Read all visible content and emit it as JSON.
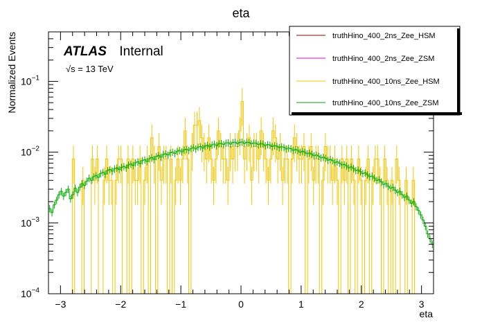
{
  "chart_data": {
    "type": "histogram",
    "title": "eta",
    "xlabel": "eta",
    "ylabel": "Normalized Events",
    "xlim": [
      -3.2,
      3.2
    ],
    "ylim": [
      0.0001,
      0.5
    ],
    "yscale": "log",
    "x_ticks": [
      {
        "value": -3,
        "label": "−3"
      },
      {
        "value": -2,
        "label": "−2"
      },
      {
        "value": -1,
        "label": "−1"
      },
      {
        "value": 0,
        "label": "0"
      },
      {
        "value": 1,
        "label": "1"
      },
      {
        "value": 2,
        "label": "2"
      },
      {
        "value": 3,
        "label": "3"
      }
    ],
    "y_ticks": [
      {
        "value": 0.0001,
        "base": "10",
        "exp": "−4"
      },
      {
        "value": 0.001,
        "base": "10",
        "exp": "−3"
      },
      {
        "value": 0.01,
        "base": "10",
        "exp": "−2"
      },
      {
        "value": 0.1,
        "base": "10",
        "exp": "−1"
      }
    ],
    "atlas_label": "ATLAS",
    "atlas_status": "Internal",
    "energy_label": "√s = 13 TeV",
    "series": [
      {
        "name": "truthHino_400_2ns_Zee_HSM",
        "color": "#8b0000",
        "values": []
      },
      {
        "name": "truthHino_400_2ns_Zee_ZSM",
        "color": "#e000e0",
        "values": []
      },
      {
        "name": "truthHino_400_10ns_Zee_HSM",
        "color": "#f5c400",
        "values": [
          0.0001,
          0.0001,
          0.0001,
          0.0001,
          0.0001,
          0.0001,
          0.0001,
          0.0001,
          0.0001,
          0.0001,
          0.008,
          0.0001,
          0.0001,
          0.0001,
          0.004,
          0.0001,
          0.0001,
          0.0001,
          0.008,
          0.004,
          0.008,
          0.0001,
          0.0001,
          0.004,
          0.008,
          0.004,
          0.004,
          0.0001,
          0.004,
          0.008,
          0.008,
          0.0001,
          0.0001,
          0.008,
          0.0001,
          0.008,
          0.004,
          0.004,
          0.008,
          0.0001,
          0.004,
          0.008,
          0.0001,
          0.016,
          0.008,
          0.0001,
          0.012,
          0.004,
          0.008,
          0.008,
          0.0001,
          0.008,
          0.0001,
          0.004,
          0.008,
          0.004,
          0.008,
          0.02,
          0.008,
          0.0001,
          0.012,
          0.024,
          0.024,
          0.028,
          0.016,
          0.012,
          0.008,
          0.016,
          0.008,
          0.004,
          0.008,
          0.02,
          0.012,
          0.008,
          0.008,
          0.004,
          0.012,
          0.008,
          0.012,
          0.012,
          0.02,
          0.052,
          0.008,
          0.012,
          0.016,
          0.004,
          0.012,
          0.012,
          0.008,
          0.02,
          0.012,
          0.008,
          0.004,
          0.008,
          0.02,
          0.016,
          0.008,
          0.012,
          0.004,
          0.008,
          0.008,
          0.0001,
          0.008,
          0.016,
          0.012,
          0.008,
          0.008,
          0.012,
          0.0001,
          0.008,
          0.012,
          0.004,
          0.008,
          0.008,
          0.0001,
          0.004,
          0.012,
          0.008,
          0.008,
          0.004,
          0.008,
          0.004,
          0.0001,
          0.008,
          0.004,
          0.008,
          0.0001,
          0.008,
          0.004,
          0.0001,
          0.008,
          0.004,
          0.0001,
          0.004,
          0.008,
          0.0001,
          0.004,
          0.008,
          0.008,
          0.004,
          0.0001,
          0.008,
          0.004,
          0.0001,
          0.004,
          0.0001,
          0.008,
          0.004,
          0.0001,
          0.0001,
          0.004,
          0.0001,
          0.0001,
          0.004,
          0.0001,
          0.0001,
          0.0001,
          0.0001,
          0.0001,
          0.0001,
          0.0001,
          0.0001
        ]
      },
      {
        "name": "truthHino_400_10ns_Zee_ZSM",
        "color": "#00aa00",
        "values": [
          0.0016,
          0.0014,
          0.0018,
          0.0021,
          0.0025,
          0.0028,
          0.0024,
          0.0027,
          0.003,
          0.0022,
          0.0025,
          0.0031,
          0.0027,
          0.0032,
          0.0036,
          0.0034,
          0.0039,
          0.0043,
          0.004,
          0.0045,
          0.0047,
          0.0044,
          0.005,
          0.0052,
          0.0049,
          0.0055,
          0.0057,
          0.0054,
          0.0058,
          0.006,
          0.0057,
          0.0061,
          0.0063,
          0.006,
          0.0066,
          0.0068,
          0.0065,
          0.0071,
          0.0073,
          0.0069,
          0.0076,
          0.0078,
          0.0074,
          0.0081,
          0.0084,
          0.0079,
          0.0087,
          0.009,
          0.0085,
          0.0093,
          0.0095,
          0.0091,
          0.0098,
          0.01,
          0.0096,
          0.0103,
          0.0106,
          0.0101,
          0.0108,
          0.011,
          0.0106,
          0.0113,
          0.0116,
          0.0111,
          0.0118,
          0.012,
          0.0114,
          0.0122,
          0.0125,
          0.0119,
          0.0127,
          0.013,
          0.0124,
          0.0132,
          0.0133,
          0.0128,
          0.0135,
          0.0136,
          0.013,
          0.0137,
          0.0138,
          0.0132,
          0.0138,
          0.0139,
          0.0133,
          0.0138,
          0.0137,
          0.0131,
          0.0135,
          0.0134,
          0.0128,
          0.0132,
          0.013,
          0.0124,
          0.0128,
          0.0126,
          0.012,
          0.0124,
          0.0121,
          0.0116,
          0.0119,
          0.0117,
          0.0111,
          0.0114,
          0.0112,
          0.0106,
          0.0109,
          0.0106,
          0.01,
          0.0103,
          0.01,
          0.0095,
          0.0097,
          0.0094,
          0.0089,
          0.0091,
          0.0088,
          0.0083,
          0.0085,
          0.0082,
          0.0077,
          0.0079,
          0.0076,
          0.0071,
          0.0073,
          0.007,
          0.0066,
          0.0067,
          0.0064,
          0.006,
          0.0062,
          0.0059,
          0.0055,
          0.0056,
          0.0053,
          0.005,
          0.0051,
          0.0048,
          0.0045,
          0.0046,
          0.0043,
          0.004,
          0.0041,
          0.0038,
          0.0035,
          0.0036,
          0.0033,
          0.0031,
          0.0032,
          0.0029,
          0.0027,
          0.0028,
          0.0025,
          0.0023,
          0.0024,
          0.0021,
          0.0019,
          0.002,
          0.0017,
          0.0015,
          0.0013,
          0.0011,
          0.0009,
          0.0007,
          0.0006,
          0.0005
        ]
      }
    ]
  }
}
